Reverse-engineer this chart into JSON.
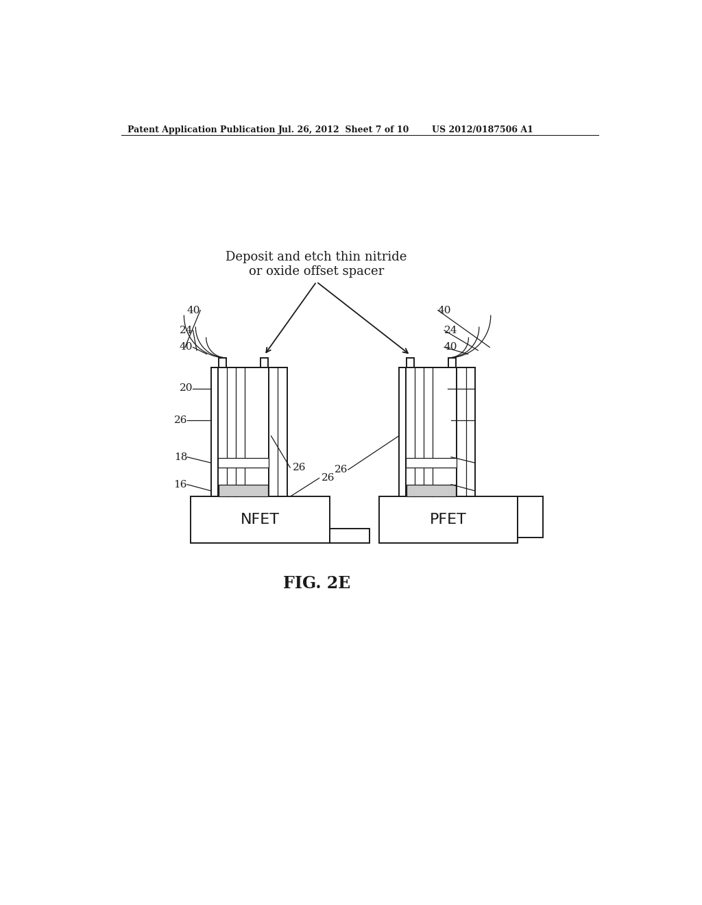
{
  "bg_color": "#ffffff",
  "header_left": "Patent Application Publication",
  "header_mid": "Jul. 26, 2012  Sheet 7 of 10",
  "header_right": "US 2012/0187506 A1",
  "fig_label": "FIG. 2E",
  "annotation_text": "Deposit and etch thin nitride\nor oxide offset spacer",
  "nfet_label": "NFET",
  "pfet_label": "PFET",
  "line_color": "#1a1a1a",
  "lw_main": 1.4,
  "lw_thin": 0.9,
  "fs_label": 11,
  "fs_header": 9,
  "fs_fig": 17,
  "fs_annot": 13,
  "fs_nfet": 16
}
